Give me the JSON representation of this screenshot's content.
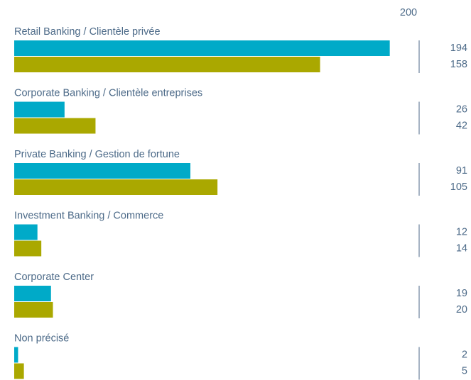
{
  "chart_data": {
    "type": "bar",
    "orientation": "horizontal",
    "categories": [
      "Retail Banking / Clientèle privée",
      "Corporate Banking / Clientèle entreprises",
      "Private Banking / Gestion de fortune",
      "Investment Banking / Commerce",
      "Corporate Center",
      "Non précisé"
    ],
    "series": [
      {
        "color": "#00aac8",
        "values": [
          194,
          26,
          91,
          12,
          19,
          2
        ]
      },
      {
        "color": "#aaa800",
        "values": [
          158,
          42,
          105,
          14,
          20,
          5
        ]
      }
    ],
    "xlim": [
      0,
      200
    ],
    "xticks": [
      200
    ]
  }
}
